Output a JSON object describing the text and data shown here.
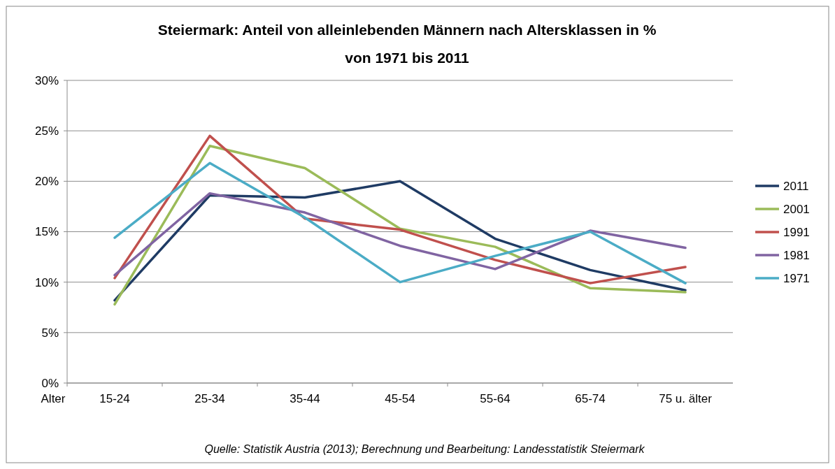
{
  "chart_data": {
    "type": "line",
    "title": "Steiermark: Anteil von alleinlebenden Männern nach Altersklassen in % von 1971 bis 2011",
    "xlabel": "Alter",
    "categories": [
      "15-24",
      "25-34",
      "35-44",
      "45-54",
      "55-64",
      "65-74",
      "75 u. älter"
    ],
    "series": [
      {
        "name": "2011",
        "color": "#1f3b64",
        "values": [
          8.2,
          18.6,
          18.4,
          20.0,
          14.3,
          11.2,
          9.2
        ]
      },
      {
        "name": "2001",
        "color": "#9bbb59",
        "values": [
          7.8,
          23.5,
          21.3,
          15.3,
          13.5,
          9.4,
          9.0
        ]
      },
      {
        "name": "1991",
        "color": "#c0504d",
        "values": [
          10.4,
          24.5,
          16.3,
          15.2,
          12.2,
          9.9,
          11.5
        ]
      },
      {
        "name": "1981",
        "color": "#8064a2",
        "values": [
          10.7,
          18.8,
          16.9,
          13.6,
          11.3,
          15.1,
          13.4
        ]
      },
      {
        "name": "1971",
        "color": "#4bacc6",
        "values": [
          14.4,
          21.8,
          16.4,
          10.0,
          12.6,
          15.0,
          9.9
        ]
      }
    ],
    "ylim": [
      0,
      30
    ],
    "yticks": [
      {
        "value": 0,
        "label": "0%"
      },
      {
        "value": 5,
        "label": "5%"
      },
      {
        "value": 10,
        "label": "10%"
      },
      {
        "value": 15,
        "label": "15%"
      },
      {
        "value": 20,
        "label": "20%"
      },
      {
        "value": 25,
        "label": "25%"
      },
      {
        "value": 30,
        "label": "30%"
      }
    ],
    "grid": "y",
    "legend": "right",
    "marker": "none",
    "line_style": "solid",
    "annotations": [
      "Quelle: Statistik Austria (2013); Berechnung und Bearbeitung: Landesstatistik Steiermark"
    ]
  }
}
